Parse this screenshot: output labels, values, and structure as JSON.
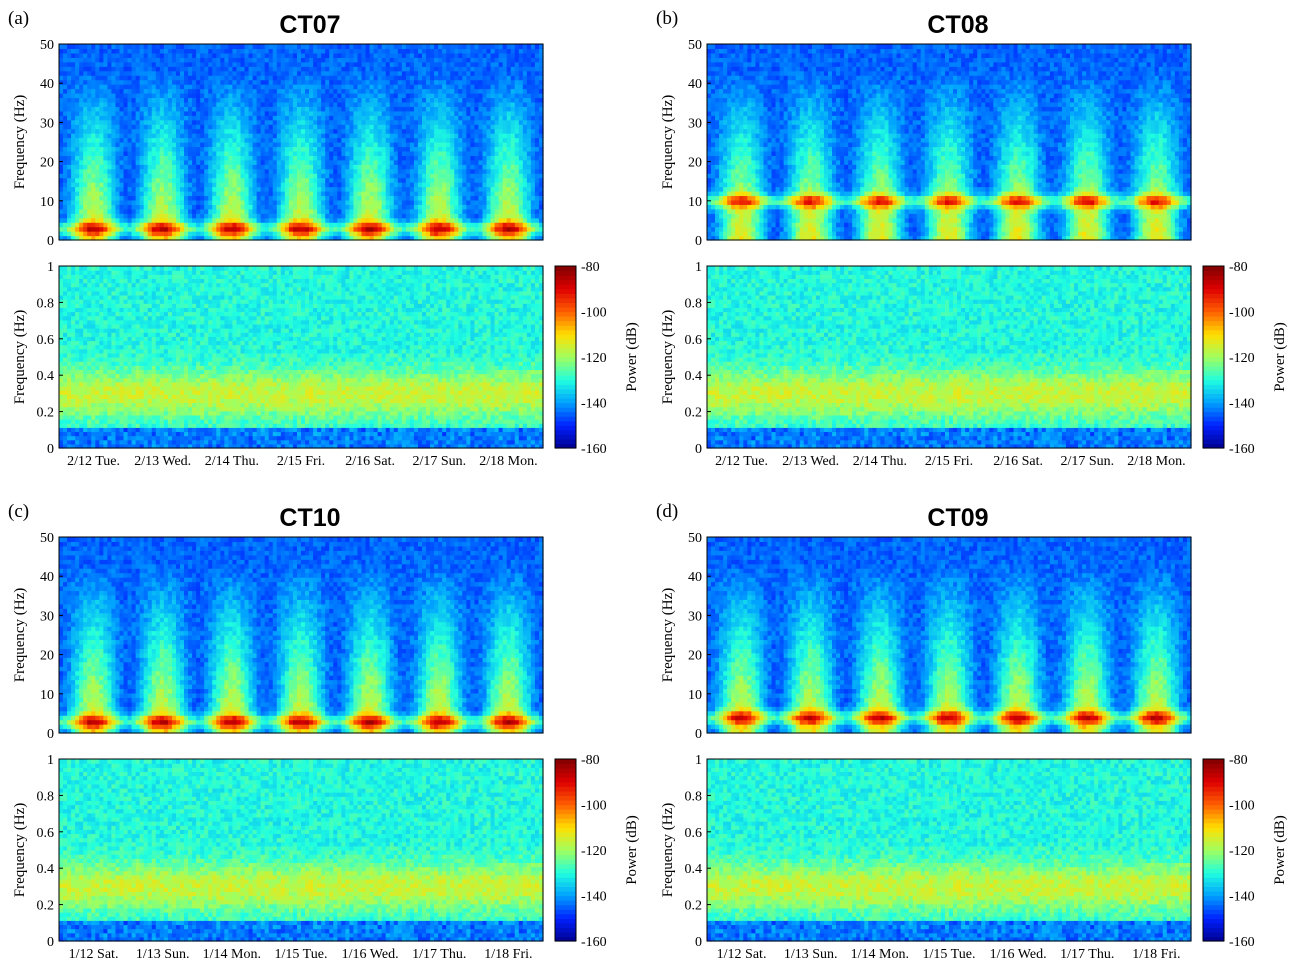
{
  "colormap": [
    "#00008f",
    "#0020ff",
    "#00a0ff",
    "#20ffdf",
    "#a0ff5f",
    "#ffdf00",
    "#ff6000",
    "#df0000",
    "#800000"
  ],
  "chart_data": [
    {
      "type": "heatmap",
      "panel_label": "(a)",
      "title": "CT07",
      "high": {
        "ylabel": "Frequency (Hz)",
        "ylim": [
          0,
          50
        ],
        "yticks": [
          "0",
          "10",
          "20",
          "30",
          "40",
          "50"
        ]
      },
      "low": {
        "ylabel": "Frequency (Hz)",
        "ylim": [
          0,
          1
        ],
        "yticks": [
          "0",
          "0.2",
          "0.4",
          "0.6",
          "0.8",
          "1"
        ]
      },
      "x_categories": [
        "2/12 Tue.",
        "2/13 Wed.",
        "2/14 Thu.",
        "2/15 Fri.",
        "2/16 Sat.",
        "2/17 Sun.",
        "2/18 Mon."
      ],
      "colorbar": {
        "label": "Power (dB)",
        "range": [
          -160,
          -80
        ],
        "ticks": [
          "-80",
          "-100",
          "-120",
          "-140",
          "-160"
        ]
      },
      "dominant_band_hz": 3
    },
    {
      "type": "heatmap",
      "panel_label": "(b)",
      "title": "CT08",
      "high": {
        "ylabel": "Frequency (Hz)",
        "ylim": [
          0,
          50
        ],
        "yticks": [
          "0",
          "10",
          "20",
          "30",
          "40",
          "50"
        ]
      },
      "low": {
        "ylabel": "Frequency (Hz)",
        "ylim": [
          0,
          1
        ],
        "yticks": [
          "0",
          "0.2",
          "0.4",
          "0.6",
          "0.8",
          "1"
        ]
      },
      "x_categories": [
        "2/12 Tue.",
        "2/13 Wed.",
        "2/14 Thu.",
        "2/15 Fri.",
        "2/16 Sat.",
        "2/17 Sun.",
        "2/18 Mon."
      ],
      "colorbar": {
        "label": "Power (dB)",
        "range": [
          -160,
          -80
        ],
        "ticks": [
          "-80",
          "-100",
          "-120",
          "-140",
          "-160"
        ]
      },
      "dominant_band_hz": 10
    },
    {
      "type": "heatmap",
      "panel_label": "(c)",
      "title": "CT10",
      "high": {
        "ylabel": "Frequency (Hz)",
        "ylim": [
          0,
          50
        ],
        "yticks": [
          "0",
          "10",
          "20",
          "30",
          "40",
          "50"
        ]
      },
      "low": {
        "ylabel": "Frequency (Hz)",
        "ylim": [
          0,
          1
        ],
        "yticks": [
          "0",
          "0.2",
          "0.4",
          "0.6",
          "0.8",
          "1"
        ]
      },
      "x_categories": [
        "1/12 Sat.",
        "1/13 Sun.",
        "1/14 Mon.",
        "1/15 Tue.",
        "1/16 Wed.",
        "1/17 Thu.",
        "1/18 Fri."
      ],
      "colorbar": {
        "label": "Power (dB)",
        "range": [
          -160,
          -80
        ],
        "ticks": [
          "-80",
          "-100",
          "-120",
          "-140",
          "-160"
        ]
      },
      "dominant_band_hz": 3
    },
    {
      "type": "heatmap",
      "panel_label": "(d)",
      "title": "CT09",
      "high": {
        "ylabel": "Frequency (Hz)",
        "ylim": [
          0,
          50
        ],
        "yticks": [
          "0",
          "10",
          "20",
          "30",
          "40",
          "50"
        ]
      },
      "low": {
        "ylabel": "Frequency (Hz)",
        "ylim": [
          0,
          1
        ],
        "yticks": [
          "0",
          "0.2",
          "0.4",
          "0.6",
          "0.8",
          "1"
        ]
      },
      "x_categories": [
        "1/12 Sat.",
        "1/13 Sun.",
        "1/14 Mon.",
        "1/15 Tue.",
        "1/16 Wed.",
        "1/17 Thu.",
        "1/18 Fri."
      ],
      "colorbar": {
        "label": "Power (dB)",
        "range": [
          -160,
          -80
        ],
        "ticks": [
          "-80",
          "-100",
          "-120",
          "-140",
          "-160"
        ]
      },
      "dominant_band_hz": 4
    }
  ]
}
